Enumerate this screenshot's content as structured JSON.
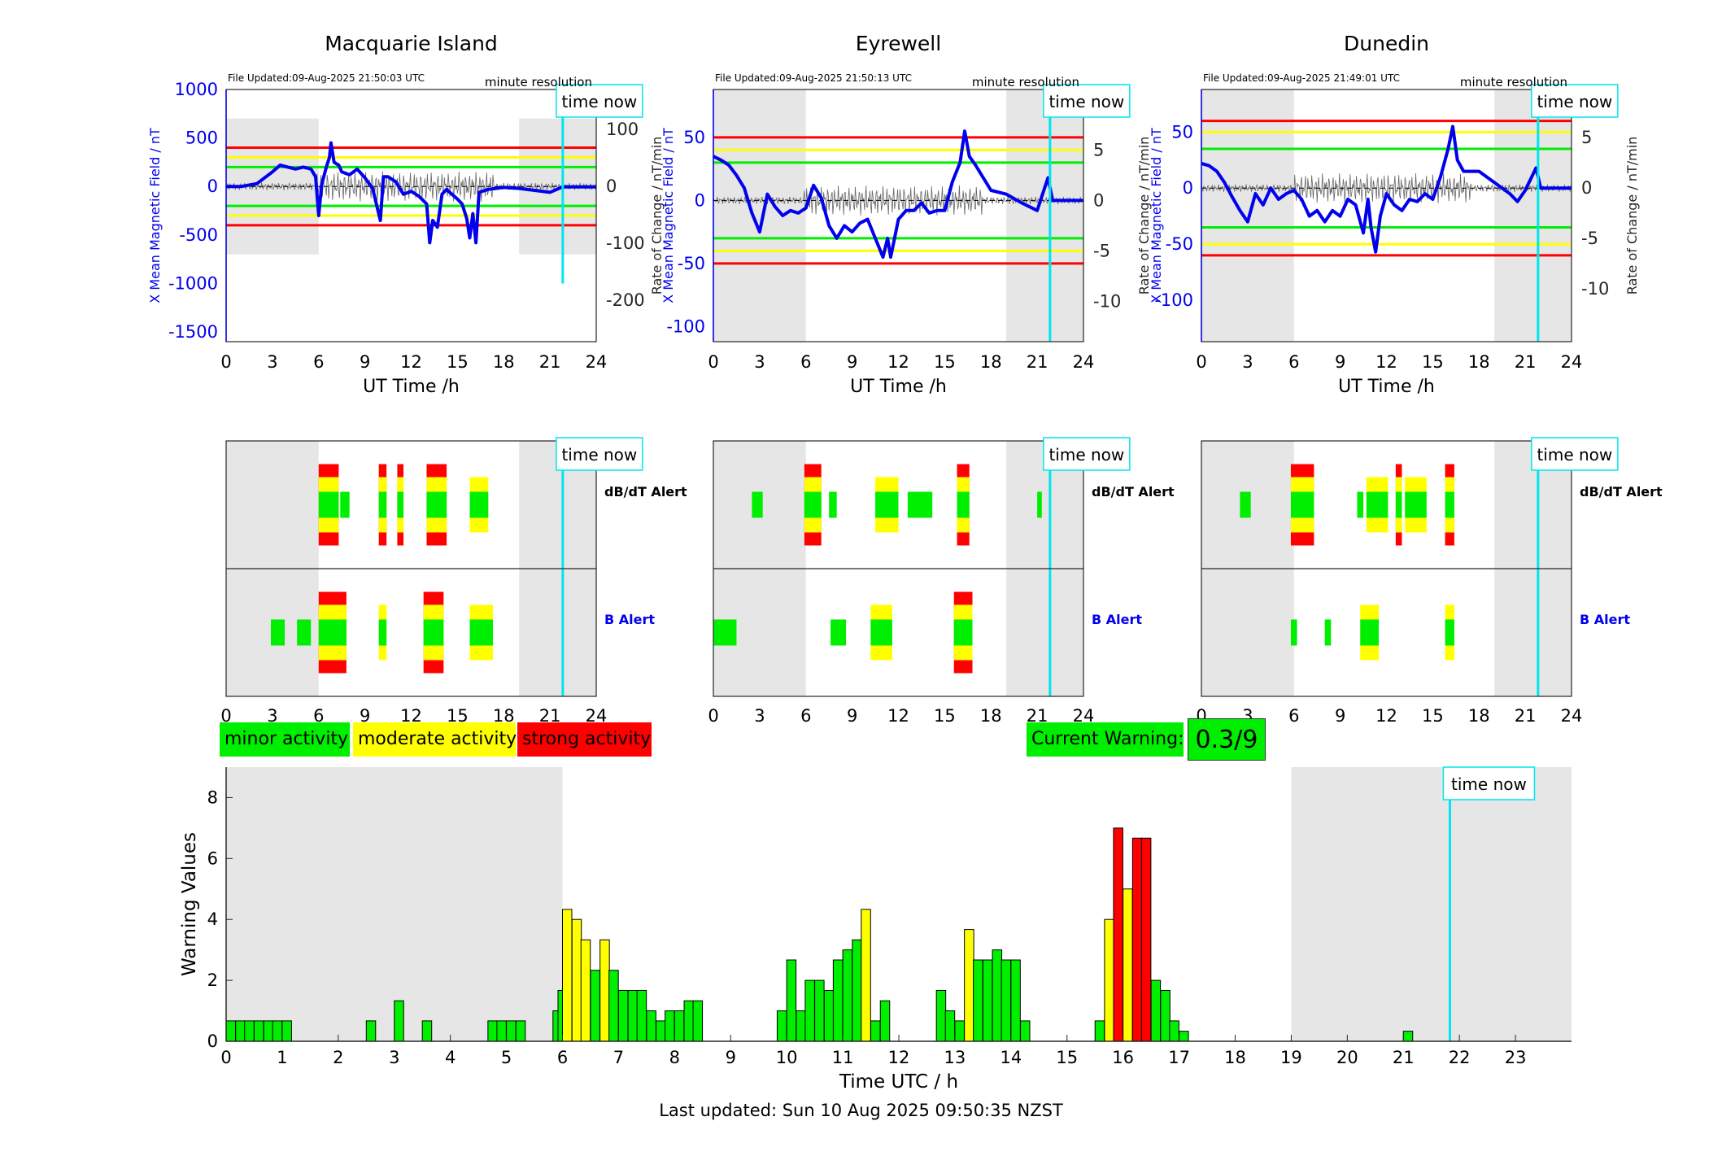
{
  "colors": {
    "minor": "#00ee00",
    "moderate": "#ffff00",
    "strong": "#ff0000",
    "field": "#0000ee",
    "marker": "#00e5ee",
    "night": "#e6e6e6"
  },
  "shared": {
    "file_prefix": "File Updated:",
    "resolution": "minute resolution",
    "time_now_label": "time now",
    "xlabel": "UT Time /h",
    "dbdt_alert_label": "dB/dT Alert",
    "b_alert_label": "B Alert",
    "x_ticks": [
      "0",
      "3",
      "6",
      "9",
      "12",
      "15",
      "18",
      "21",
      "24"
    ]
  },
  "stations": [
    {
      "title": "Macquarie Island",
      "file_updated": "09-Aug-2025 21:50:03 UTC",
      "ylabel_left": "X Mean Magnetic Field / nT",
      "ylabel_right": "Rate of Change / nT/min",
      "left_ticks": [
        "1000",
        "500",
        "0",
        "-500",
        "-1000",
        "-1500"
      ],
      "right_ticks": [
        "100",
        "0",
        "-100",
        "-200"
      ],
      "left_range": [
        -1600,
        1000
      ],
      "thresholds": {
        "red": 400,
        "yellow": 300,
        "green": 200
      },
      "night_blocks": [
        [
          0,
          6
        ],
        [
          19,
          24
        ]
      ],
      "night_y": [
        -700,
        700
      ],
      "now_hour": 21.83,
      "now_line_y": [
        -1000,
        1000
      ],
      "field_trace": [
        [
          0,
          0
        ],
        [
          1,
          0
        ],
        [
          2,
          30
        ],
        [
          3,
          150
        ],
        [
          3.5,
          220
        ],
        [
          4,
          200
        ],
        [
          4.5,
          180
        ],
        [
          5,
          200
        ],
        [
          5.5,
          180
        ],
        [
          5.8,
          100
        ],
        [
          6,
          -300
        ],
        [
          6.2,
          20
        ],
        [
          6.5,
          200
        ],
        [
          6.7,
          300
        ],
        [
          6.8,
          450
        ],
        [
          7,
          250
        ],
        [
          7.3,
          220
        ],
        [
          7.5,
          150
        ],
        [
          8,
          120
        ],
        [
          8.5,
          180
        ],
        [
          9,
          90
        ],
        [
          9.5,
          -20
        ],
        [
          10,
          -350
        ],
        [
          10.2,
          100
        ],
        [
          10.5,
          100
        ],
        [
          11,
          50
        ],
        [
          11.5,
          -80
        ],
        [
          12,
          -50
        ],
        [
          12.5,
          -100
        ],
        [
          13,
          -180
        ],
        [
          13.2,
          -580
        ],
        [
          13.4,
          -350
        ],
        [
          13.7,
          -420
        ],
        [
          14,
          -80
        ],
        [
          14.3,
          -30
        ],
        [
          14.5,
          -60
        ],
        [
          15,
          -130
        ],
        [
          15.3,
          -180
        ],
        [
          15.6,
          -330
        ],
        [
          15.8,
          -530
        ],
        [
          16,
          -280
        ],
        [
          16.2,
          -580
        ],
        [
          16.4,
          -60
        ],
        [
          17,
          -30
        ],
        [
          18,
          -10
        ],
        [
          19,
          -20
        ],
        [
          20,
          -40
        ],
        [
          21,
          -60
        ],
        [
          21.8,
          -5
        ],
        [
          24,
          -5
        ]
      ],
      "dbdt_alerts": [
        {
          "start": 6,
          "end": 7.3,
          "level": "strong"
        },
        {
          "start": 7.4,
          "end": 8,
          "level": "minor"
        },
        {
          "start": 9.9,
          "end": 10.4,
          "level": "strong"
        },
        {
          "start": 11.1,
          "end": 11.5,
          "level": "strong"
        },
        {
          "start": 13,
          "end": 14.3,
          "level": "strong"
        },
        {
          "start": 15.8,
          "end": 17,
          "level": "moderate"
        }
      ],
      "b_alerts": [
        {
          "start": 2.9,
          "end": 3.8,
          "level": "minor"
        },
        {
          "start": 4.6,
          "end": 5.5,
          "level": "minor"
        },
        {
          "start": 6,
          "end": 7.8,
          "level": "strong"
        },
        {
          "start": 9.9,
          "end": 10.4,
          "level": "moderate"
        },
        {
          "start": 12.8,
          "end": 14.1,
          "level": "strong"
        },
        {
          "start": 15.8,
          "end": 17.3,
          "level": "moderate"
        }
      ]
    },
    {
      "title": "Eyrewell",
      "file_updated": "09-Aug-2025 21:50:13 UTC",
      "ylabel_left": "X Mean Magnetic Field / nT",
      "ylabel_right": "Rate of Change / nT/min",
      "left_ticks": [
        "50",
        "0",
        "-50",
        "-100"
      ],
      "right_ticks": [
        "5",
        "0",
        "-5",
        "-10"
      ],
      "left_range": [
        -112,
        88
      ],
      "thresholds": {
        "red": 50,
        "yellow": 40,
        "green": 30
      },
      "night_blocks": [
        [
          0,
          6
        ],
        [
          19,
          24
        ]
      ],
      "night_y": [
        -112,
        88
      ],
      "now_hour": 21.83,
      "now_line_y": [
        -112,
        88
      ],
      "field_trace": [
        [
          0,
          35
        ],
        [
          0.5,
          32
        ],
        [
          1,
          28
        ],
        [
          1.5,
          20
        ],
        [
          2,
          10
        ],
        [
          2.5,
          -10
        ],
        [
          3,
          -25
        ],
        [
          3.5,
          5
        ],
        [
          4,
          -5
        ],
        [
          4.5,
          -12
        ],
        [
          5,
          -8
        ],
        [
          5.5,
          -10
        ],
        [
          6,
          -6
        ],
        [
          6.5,
          12
        ],
        [
          7,
          2
        ],
        [
          7.5,
          -20
        ],
        [
          8,
          -30
        ],
        [
          8.5,
          -20
        ],
        [
          9,
          -25
        ],
        [
          9.5,
          -18
        ],
        [
          10,
          -15
        ],
        [
          10.5,
          -30
        ],
        [
          11,
          -45
        ],
        [
          11.3,
          -30
        ],
        [
          11.5,
          -45
        ],
        [
          12,
          -15
        ],
        [
          12.5,
          -8
        ],
        [
          13,
          -8
        ],
        [
          13.5,
          -2
        ],
        [
          14,
          -10
        ],
        [
          14.5,
          -8
        ],
        [
          15,
          -8
        ],
        [
          15.5,
          15
        ],
        [
          16,
          30
        ],
        [
          16.3,
          55
        ],
        [
          16.6,
          35
        ],
        [
          17,
          28
        ],
        [
          18,
          8
        ],
        [
          19,
          5
        ],
        [
          20,
          -2
        ],
        [
          21,
          -8
        ],
        [
          21.7,
          18
        ],
        [
          22,
          0
        ],
        [
          24,
          0
        ]
      ],
      "dbdt_alerts": [
        {
          "start": 2.5,
          "end": 3.2,
          "level": "minor"
        },
        {
          "start": 5.9,
          "end": 7,
          "level": "strong"
        },
        {
          "start": 7.5,
          "end": 8,
          "level": "minor"
        },
        {
          "start": 10.5,
          "end": 12,
          "level": "moderate"
        },
        {
          "start": 12.6,
          "end": 14.2,
          "level": "minor"
        },
        {
          "start": 15.8,
          "end": 16.6,
          "level": "strong"
        },
        {
          "start": 21,
          "end": 21.3,
          "level": "minor"
        }
      ],
      "b_alerts": [
        {
          "start": 0,
          "end": 1.5,
          "level": "minor"
        },
        {
          "start": 7.6,
          "end": 8.6,
          "level": "minor"
        },
        {
          "start": 10.2,
          "end": 11.6,
          "level": "moderate"
        },
        {
          "start": 15.6,
          "end": 16.8,
          "level": "strong"
        }
      ]
    },
    {
      "title": "Dunedin",
      "file_updated": "09-Aug-2025 21:49:01 UTC",
      "ylabel_left": "X Mean Magnetic Field / nT",
      "ylabel_right": "Rate of Change / nT/min",
      "left_ticks": [
        "50",
        "0",
        "-50",
        "-100"
      ],
      "right_ticks": [
        "5",
        "0",
        "-5",
        "-10"
      ],
      "left_range": [
        -137,
        88
      ],
      "thresholds": {
        "red": 60,
        "yellow": 50,
        "green": 35
      },
      "night_blocks": [
        [
          0,
          6
        ],
        [
          19,
          24
        ]
      ],
      "night_y": [
        -137,
        88
      ],
      "now_hour": 21.83,
      "now_line_y": [
        -137,
        88
      ],
      "field_trace": [
        [
          0,
          22
        ],
        [
          0.5,
          20
        ],
        [
          1,
          15
        ],
        [
          1.5,
          5
        ],
        [
          2,
          -8
        ],
        [
          2.5,
          -20
        ],
        [
          3,
          -30
        ],
        [
          3.5,
          -5
        ],
        [
          4,
          -15
        ],
        [
          4.5,
          0
        ],
        [
          5,
          -10
        ],
        [
          5.5,
          -5
        ],
        [
          6,
          -2
        ],
        [
          6.5,
          -10
        ],
        [
          7,
          -25
        ],
        [
          7.5,
          -20
        ],
        [
          8,
          -30
        ],
        [
          8.5,
          -20
        ],
        [
          9,
          -25
        ],
        [
          9.5,
          -10
        ],
        [
          10,
          -15
        ],
        [
          10.5,
          -40
        ],
        [
          10.8,
          -10
        ],
        [
          11,
          -35
        ],
        [
          11.3,
          -57
        ],
        [
          11.6,
          -25
        ],
        [
          12,
          -5
        ],
        [
          12.5,
          -15
        ],
        [
          13,
          -20
        ],
        [
          13.5,
          -10
        ],
        [
          14,
          -12
        ],
        [
          14.5,
          -5
        ],
        [
          15,
          -10
        ],
        [
          15.5,
          10
        ],
        [
          16,
          35
        ],
        [
          16.3,
          55
        ],
        [
          16.6,
          25
        ],
        [
          17,
          15
        ],
        [
          18,
          15
        ],
        [
          19,
          5
        ],
        [
          20,
          -5
        ],
        [
          20.5,
          -12
        ],
        [
          21,
          -2
        ],
        [
          21.7,
          18
        ],
        [
          22,
          0
        ],
        [
          24,
          0
        ]
      ],
      "dbdt_alerts": [
        {
          "start": 2.5,
          "end": 3.2,
          "level": "minor"
        },
        {
          "start": 5.8,
          "end": 7.3,
          "level": "strong"
        },
        {
          "start": 10.1,
          "end": 10.5,
          "level": "minor"
        },
        {
          "start": 10.7,
          "end": 12.1,
          "level": "moderate"
        },
        {
          "start": 12.6,
          "end": 13,
          "level": "strong"
        },
        {
          "start": 13.2,
          "end": 14.6,
          "level": "moderate"
        },
        {
          "start": 15.8,
          "end": 16.4,
          "level": "strong"
        }
      ],
      "b_alerts": [
        {
          "start": 5.8,
          "end": 6.2,
          "level": "minor"
        },
        {
          "start": 8,
          "end": 8.4,
          "level": "minor"
        },
        {
          "start": 10.3,
          "end": 11.5,
          "level": "moderate"
        },
        {
          "start": 15.8,
          "end": 16.4,
          "level": "moderate"
        }
      ]
    }
  ],
  "legend": {
    "minor_label": "minor activity",
    "moderate_label": "moderate activity",
    "strong_label": "strong activity"
  },
  "current_warning": {
    "label": "Current Warning:",
    "value": "0.3/9"
  },
  "chart_data": {
    "type": "bar",
    "xlabel": "Time UTC / h",
    "ylabel": "Warning Values",
    "xlim": [
      0,
      24
    ],
    "ylim": [
      0,
      9
    ],
    "y_ticks": [
      "0",
      "2",
      "4",
      "6",
      "8"
    ],
    "x_ticks": [
      "0",
      "1",
      "2",
      "3",
      "4",
      "5",
      "6",
      "7",
      "8",
      "9",
      "10",
      "11",
      "12",
      "13",
      "14",
      "15",
      "16",
      "17",
      "18",
      "19",
      "20",
      "21",
      "22",
      "23"
    ],
    "bar_width_h": 0.1667,
    "night_blocks": [
      [
        0,
        6
      ],
      [
        19,
        24
      ]
    ],
    "now_hour": 21.83,
    "time_now_label": "time now",
    "series": [
      {
        "level": "minor",
        "x": [
          0,
          0.17,
          0.33,
          0.5,
          0.67,
          0.83,
          1,
          2.5,
          3,
          3.5,
          4.67,
          4.83,
          5,
          5.17,
          5.83
        ],
        "values": [
          0.67,
          0.67,
          0.67,
          0.67,
          0.67,
          0.67,
          0.67,
          0.67,
          1.33,
          0.67,
          0.67,
          0.67,
          0.67,
          0.67,
          1
        ]
      },
      {
        "level": "minor",
        "x": [
          5.92
        ],
        "values": [
          1.67
        ]
      },
      {
        "level": "moderate",
        "x": [
          6,
          6.17,
          6.33
        ],
        "values": [
          4.33,
          4,
          3.33
        ]
      },
      {
        "level": "minor",
        "x": [
          6.5
        ],
        "values": [
          2.33
        ]
      },
      {
        "level": "moderate",
        "x": [
          6.67
        ],
        "values": [
          3.33
        ]
      },
      {
        "level": "minor",
        "x": [
          6.83,
          7,
          7.17,
          7.33,
          7.5,
          7.67,
          7.83,
          8,
          8.17,
          8.33
        ],
        "values": [
          2.33,
          1.67,
          1.67,
          1.67,
          1,
          0.67,
          1,
          1,
          1.33,
          1.33
        ]
      },
      {
        "level": "minor",
        "x": [
          9.83,
          10,
          10.17,
          10.33,
          10.5,
          10.67,
          10.83,
          11,
          11.17
        ],
        "values": [
          1,
          2.67,
          1,
          2,
          2,
          1.67,
          2.67,
          3,
          3.33
        ]
      },
      {
        "level": "moderate",
        "x": [
          11.33
        ],
        "values": [
          4.33
        ]
      },
      {
        "level": "minor",
        "x": [
          11.5,
          11.67
        ],
        "values": [
          0.67,
          1.33
        ]
      },
      {
        "level": "minor",
        "x": [
          12.67,
          12.83,
          13
        ],
        "values": [
          1.67,
          1,
          0.67
        ]
      },
      {
        "level": "moderate",
        "x": [
          13.17
        ],
        "values": [
          3.67
        ]
      },
      {
        "level": "minor",
        "x": [
          13.33,
          13.5,
          13.67,
          13.83,
          14,
          14.17
        ],
        "values": [
          2.67,
          2.67,
          3,
          2.67,
          2.67,
          0.67
        ]
      },
      {
        "level": "minor",
        "x": [
          15.5
        ],
        "values": [
          0.67
        ]
      },
      {
        "level": "moderate",
        "x": [
          15.67
        ],
        "values": [
          4
        ]
      },
      {
        "level": "strong",
        "x": [
          15.83
        ],
        "values": [
          7
        ]
      },
      {
        "level": "moderate",
        "x": [
          16
        ],
        "values": [
          5
        ]
      },
      {
        "level": "strong",
        "x": [
          16.17,
          16.33
        ],
        "values": [
          6.67,
          6.67
        ]
      },
      {
        "level": "minor",
        "x": [
          16.5,
          16.67,
          16.83,
          17
        ],
        "values": [
          2,
          1.67,
          0.67,
          0.33
        ]
      },
      {
        "level": "minor",
        "x": [
          21
        ],
        "values": [
          0.33
        ]
      }
    ]
  },
  "footer": "Last updated: Sun 10 Aug 2025 09:50:35 NZST"
}
